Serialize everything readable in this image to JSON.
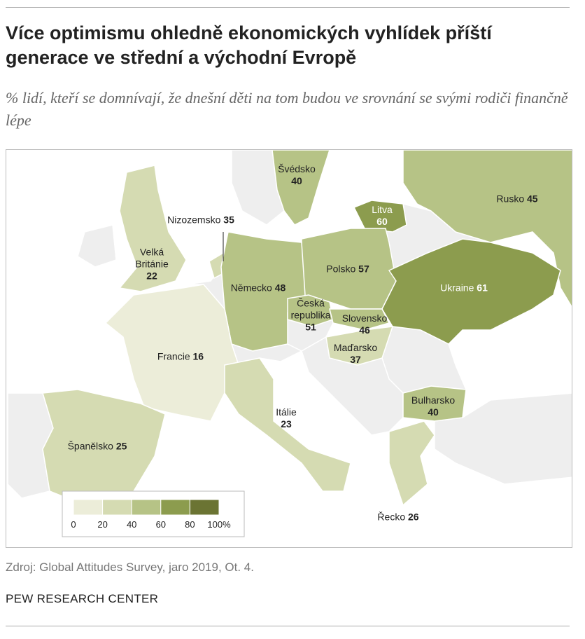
{
  "header": {
    "title": "Více optimismu ohledně ekonomických vyhlídek příští generace ve střední a východní Evropě",
    "subtitle": "% lidí, kteří se domnívají, že dnešní děti na tom budou ve srovnání se svými rodiči finančně lépe"
  },
  "map": {
    "regions": [
      {
        "name": "Švédsko",
        "value": 40
      },
      {
        "name": "Rusko",
        "value": 45
      },
      {
        "name": "Litva",
        "value": 60
      },
      {
        "name": "Nizozemsko",
        "value": 35
      },
      {
        "name": "Velká Británie",
        "value": 22
      },
      {
        "name": "Polsko",
        "value": 57
      },
      {
        "name": "Německo",
        "value": 48
      },
      {
        "name": "Ukraine",
        "value": 61
      },
      {
        "name": "Česká republika",
        "value": 51
      },
      {
        "name": "Slovensko",
        "value": 46
      },
      {
        "name": "Francie",
        "value": 16
      },
      {
        "name": "Maďarsko",
        "value": 37
      },
      {
        "name": "Bulharsko",
        "value": 40
      },
      {
        "name": "Itálie",
        "value": 23
      },
      {
        "name": "Španělsko",
        "value": 25
      },
      {
        "name": "Řecko",
        "value": 26
      }
    ],
    "legend": {
      "ticks": [
        0,
        20,
        40,
        60,
        80,
        {
          "value": 100,
          "label": "100%"
        }
      ],
      "colors": [
        "#ecedd9",
        "#d5dbb2",
        "#b6c386",
        "#8c9c4e",
        "#6b7433"
      ]
    }
  },
  "footer": {
    "source": "Zdroj: Global Attitudes Survey, jaro 2019, Ot. 4.",
    "brand": "PEW RESEARCH CENTER"
  }
}
